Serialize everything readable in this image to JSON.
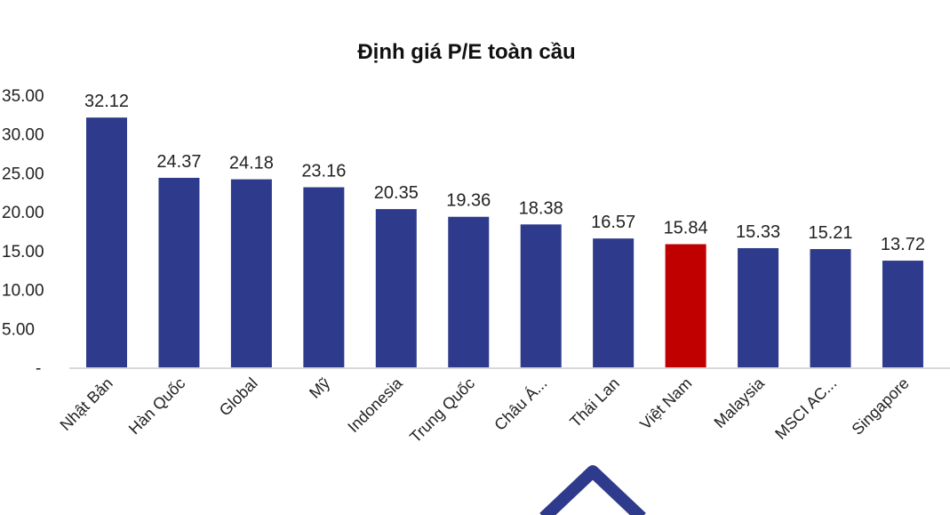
{
  "chart_data": {
    "type": "bar",
    "title": "Định giá P/E toàn cầu",
    "xlabel": "",
    "ylabel": "",
    "ylim": [
      0,
      35
    ],
    "yticks": [
      "-",
      "5.00",
      "10.00",
      "15.00",
      "20.00",
      "25.00",
      "30.00",
      "35.00"
    ],
    "grid": false,
    "categories": [
      "Nhật Bản",
      "Hàn Quốc",
      "Global",
      "Mỹ",
      "Indonesia",
      "Trung Quốc",
      "Châu Á...",
      "Thái Lan",
      "Việt Nam",
      "Malaysia",
      "MSCI AC...",
      "Singapore"
    ],
    "values": [
      32.12,
      24.37,
      24.18,
      23.16,
      20.35,
      19.36,
      18.38,
      16.57,
      15.84,
      15.33,
      15.21,
      13.72
    ],
    "data_labels": [
      "32.12",
      "24.37",
      "24.18",
      "23.16",
      "20.35",
      "19.36",
      "18.38",
      "16.57",
      "15.84",
      "15.33",
      "15.21",
      "13.72"
    ],
    "highlight": "Việt Nam",
    "colors": {
      "bar": "#2e3a8c",
      "highlight": "#c00000",
      "axis": "#d9d9d9"
    }
  }
}
